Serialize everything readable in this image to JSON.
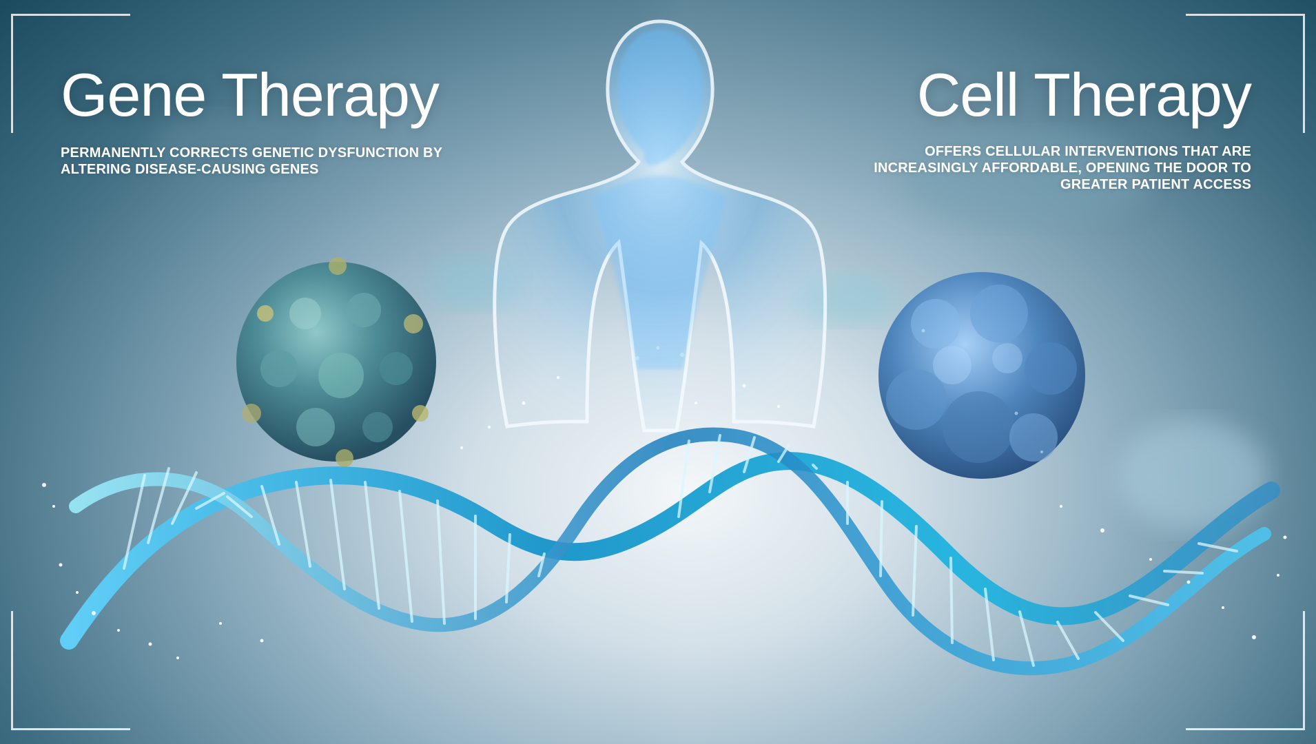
{
  "left_panel": {
    "title": "Gene Therapy",
    "caption_line_1": "PERMANENTLY CORRECTS GENETIC DYSFUNCTION BY",
    "caption_line_2": "ALTERING DISEASE-CAUSING GENES"
  },
  "right_panel": {
    "title": "Cell Therapy",
    "caption_line_1": "OFFERS CELLULAR INTERVENTIONS THAT ARE",
    "caption_line_2": "INCREASINGLY AFFORDABLE, OPENING THE DOOR TO",
    "caption_line_3": "GREATER PATIENT ACCESS"
  },
  "colors": {
    "text": "#ffffff",
    "deep_teal": "#1d5268",
    "cyan": "#2aa9d6",
    "light_blue": "#9ed8f5"
  }
}
